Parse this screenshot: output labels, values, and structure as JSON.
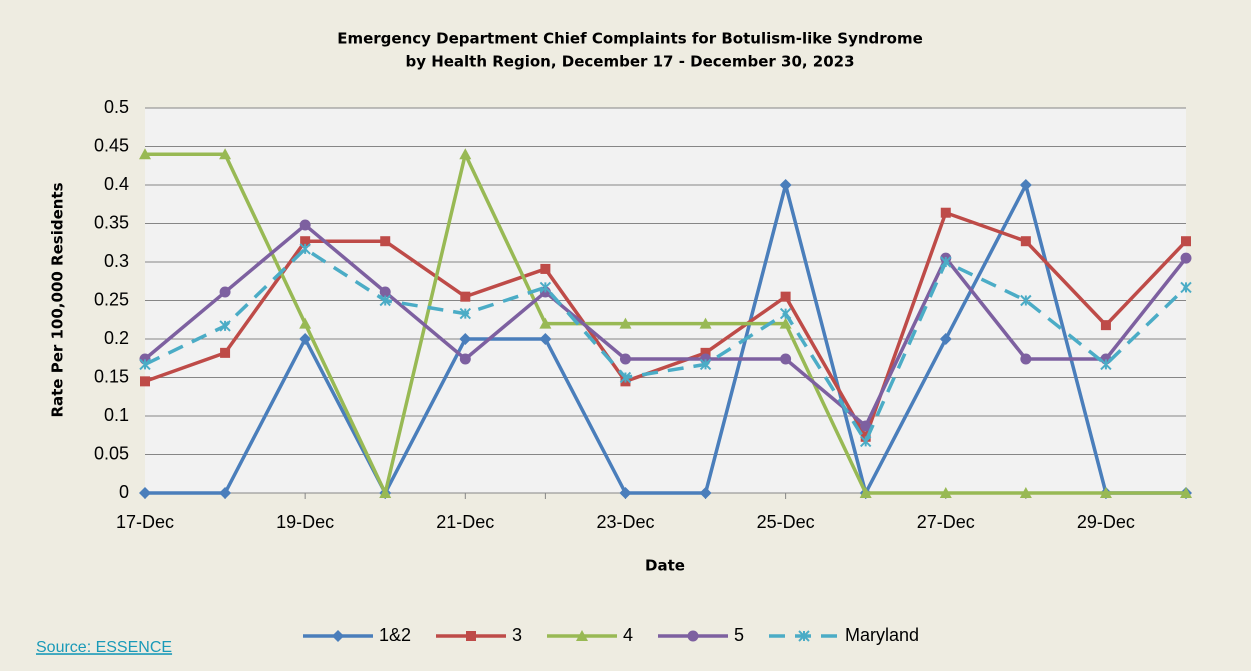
{
  "chart_data": {
    "type": "line",
    "title": [
      "Emergency Department Chief Complaints for Botulism-like Syndrome",
      "by Health Region, December 17 - December 30, 2023"
    ],
    "x_label": "Date",
    "y_label": "Rate Per 100,000 Residents",
    "source": "Source: ESSENCE",
    "categories": [
      "17-Dec",
      null,
      "19-Dec",
      null,
      "21-Dec",
      null,
      "23-Dec",
      null,
      "25-Dec",
      null,
      "27-Dec",
      null,
      "29-Dec",
      null
    ],
    "ylim": [
      0,
      0.5
    ],
    "yticks": [
      0,
      0.05,
      0.1,
      0.15,
      0.2,
      0.25,
      0.3,
      0.35,
      0.4,
      0.45,
      0.5
    ],
    "grid": true,
    "legend": "bottom",
    "series": [
      {
        "name": "1&2",
        "color": "#4a7ebb",
        "marker": "diamond",
        "dashed": false,
        "values": [
          0,
          0,
          0.2,
          0,
          0.2,
          0.2,
          0,
          0,
          0.4,
          0,
          0.2,
          0.4,
          0,
          0
        ]
      },
      {
        "name": "3",
        "color": "#be4b48",
        "marker": "square",
        "dashed": false,
        "values": [
          0.145,
          0.182,
          0.327,
          0.327,
          0.255,
          0.291,
          0.145,
          0.182,
          0.255,
          0.073,
          0.364,
          0.327,
          0.218,
          0.327
        ]
      },
      {
        "name": "4",
        "color": "#98b954",
        "marker": "triangle",
        "dashed": false,
        "values": [
          0.44,
          0.44,
          0.22,
          0,
          0.44,
          0.22,
          0.22,
          0.22,
          0.22,
          0,
          0,
          0,
          0,
          0
        ]
      },
      {
        "name": "5",
        "color": "#7d60a0",
        "marker": "circle",
        "dashed": false,
        "values": [
          0.174,
          0.261,
          0.348,
          0.261,
          0.174,
          0.261,
          0.174,
          0.174,
          0.174,
          0.087,
          0.305,
          0.174,
          0.174,
          0.305
        ]
      },
      {
        "name": "Maryland",
        "color": "#4bacc6",
        "marker": "x",
        "dashed": true,
        "values": [
          0.167,
          0.217,
          0.317,
          0.25,
          0.233,
          0.267,
          0.15,
          0.167,
          0.233,
          0.067,
          0.3,
          0.25,
          0.167,
          0.267
        ]
      }
    ]
  }
}
